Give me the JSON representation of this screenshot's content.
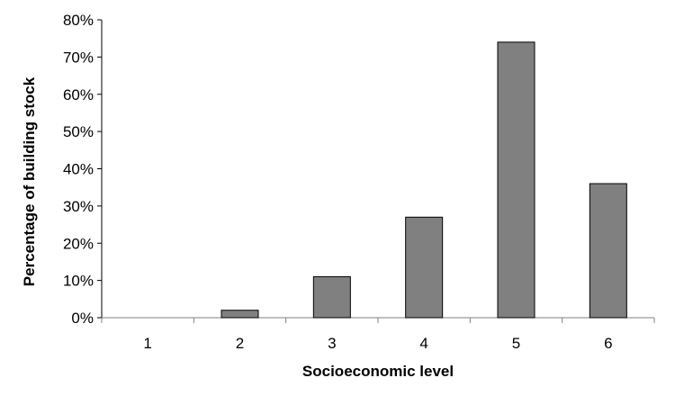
{
  "chart_data": {
    "type": "bar",
    "categories": [
      "1",
      "2",
      "3",
      "4",
      "5",
      "6"
    ],
    "values": [
      0,
      2,
      11,
      27,
      74,
      36
    ],
    "value_unit": "%",
    "title": "",
    "xlabel": "Socioeconomic level",
    "ylabel": "Percentage of building stock",
    "ylim": [
      0,
      80
    ],
    "yticks": [
      "0%",
      "10%",
      "20%",
      "30%",
      "40%",
      "50%",
      "60%",
      "70%",
      "80%"
    ],
    "grid": false,
    "legend": "none",
    "colors": {
      "bar_fill": "#808080",
      "bar_stroke": "#000000",
      "axis": "#000000",
      "tick_axis": "#808080"
    }
  }
}
